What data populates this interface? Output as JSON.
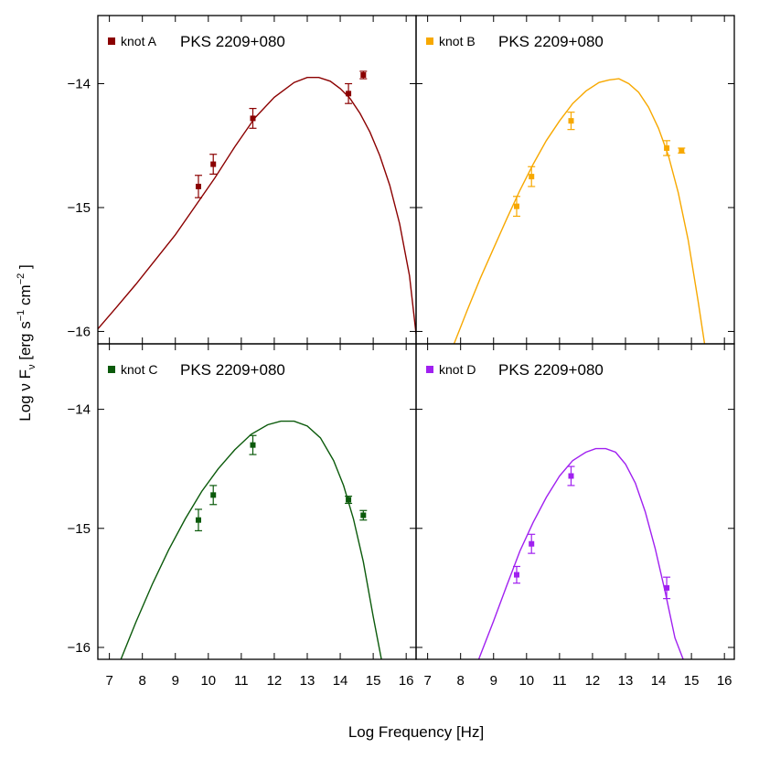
{
  "figure": {
    "ylabel_main": "Log ν F",
    "ylabel_sub": "ν",
    "ylabel_units": "[erg  s",
    "ylabel_exp1": "−1",
    "ylabel_cm": "cm",
    "ylabel_exp2": "−2",
    "ylabel_close": "]",
    "xlabel": "Log Frequency [Hz]"
  },
  "chart_data": [
    {
      "type": "scatter",
      "panel": "top-left",
      "legend_label": "knot A",
      "source_label": "PKS 2209+080",
      "color": "#8b0000",
      "xlim": [
        6.65,
        16.3
      ],
      "ylim": [
        -16.1,
        -13.45
      ],
      "x_ticks": [
        7,
        8,
        9,
        10,
        11,
        12,
        13,
        14,
        15,
        16
      ],
      "y_ticks": [
        -14,
        -15,
        -16
      ],
      "y_tick_labels": [
        "−14",
        "−15",
        "−16"
      ],
      "show_x_tick_labels": false,
      "show_y_tick_labels": true,
      "points": [
        {
          "x": 9.7,
          "y": -14.83,
          "err": 0.09
        },
        {
          "x": 10.15,
          "y": -14.65,
          "err": 0.08
        },
        {
          "x": 11.35,
          "y": -14.28,
          "err": 0.08
        },
        {
          "x": 14.25,
          "y": -14.08,
          "err": 0.08
        },
        {
          "x": 14.7,
          "y": -13.93,
          "err": 0.03
        }
      ],
      "model_curve": {
        "x": [
          6.65,
          7.2,
          7.8,
          8.4,
          9.0,
          9.6,
          10.2,
          10.8,
          11.4,
          12.0,
          12.6,
          13.0,
          13.35,
          13.7,
          14.0,
          14.3,
          14.6,
          14.9,
          15.2,
          15.5,
          15.8,
          16.1,
          16.3
        ],
        "y": [
          -15.98,
          -15.81,
          -15.62,
          -15.42,
          -15.22,
          -14.99,
          -14.76,
          -14.51,
          -14.28,
          -14.11,
          -13.99,
          -13.95,
          -13.95,
          -13.98,
          -14.04,
          -14.12,
          -14.24,
          -14.39,
          -14.58,
          -14.82,
          -15.13,
          -15.55,
          -16.02
        ]
      }
    },
    {
      "type": "scatter",
      "panel": "top-right",
      "legend_label": "knot B",
      "source_label": "PKS 2209+080",
      "color": "#f7a800",
      "xlim": [
        6.65,
        16.3
      ],
      "ylim": [
        -16.1,
        -13.45
      ],
      "x_ticks": [
        7,
        8,
        9,
        10,
        11,
        12,
        13,
        14,
        15,
        16
      ],
      "y_ticks": [
        -14,
        -15,
        -16
      ],
      "y_tick_labels": [
        "−14",
        "−15",
        "−16"
      ],
      "show_x_tick_labels": false,
      "show_y_tick_labels": false,
      "points": [
        {
          "x": 9.7,
          "y": -14.99,
          "err": 0.08
        },
        {
          "x": 10.15,
          "y": -14.75,
          "err": 0.08
        },
        {
          "x": 11.35,
          "y": -14.3,
          "err": 0.07
        },
        {
          "x": 14.25,
          "y": -14.52,
          "err": 0.06
        },
        {
          "x": 14.7,
          "y": -14.54,
          "err": 0.02
        }
      ],
      "model_curve": {
        "x": [
          7.8,
          8.2,
          8.6,
          9.0,
          9.4,
          9.8,
          10.2,
          10.6,
          11.0,
          11.4,
          11.8,
          12.2,
          12.5,
          12.8,
          13.1,
          13.4,
          13.7,
          14.0,
          14.3,
          14.6,
          14.9,
          15.2,
          15.4
        ],
        "y": [
          -16.1,
          -15.83,
          -15.57,
          -15.33,
          -15.09,
          -14.86,
          -14.65,
          -14.46,
          -14.3,
          -14.16,
          -14.06,
          -13.99,
          -13.97,
          -13.96,
          -14.0,
          -14.07,
          -14.19,
          -14.36,
          -14.58,
          -14.88,
          -15.26,
          -15.75,
          -16.1
        ]
      }
    },
    {
      "type": "scatter",
      "panel": "bottom-left",
      "legend_label": "knot C",
      "source_label": "PKS 2209+080",
      "color": "#0b5a0b",
      "xlim": [
        6.65,
        16.3
      ],
      "ylim": [
        -16.1,
        -13.45
      ],
      "x_ticks": [
        7,
        8,
        9,
        10,
        11,
        12,
        13,
        14,
        15,
        16
      ],
      "x_tick_labels": [
        "7",
        "8",
        "9",
        "10",
        "11",
        "12",
        "13",
        "14",
        "15",
        "16"
      ],
      "y_ticks": [
        -14,
        -15,
        -16
      ],
      "y_tick_labels": [
        "−14",
        "−15",
        "−16"
      ],
      "show_x_tick_labels": true,
      "show_y_tick_labels": true,
      "points": [
        {
          "x": 9.7,
          "y": -14.93,
          "err": 0.09
        },
        {
          "x": 10.15,
          "y": -14.72,
          "err": 0.08
        },
        {
          "x": 11.35,
          "y": -14.3,
          "err": 0.08
        },
        {
          "x": 14.25,
          "y": -14.76,
          "err": 0.03
        },
        {
          "x": 14.7,
          "y": -14.89,
          "err": 0.04
        }
      ],
      "model_curve": {
        "x": [
          7.35,
          7.8,
          8.3,
          8.8,
          9.3,
          9.8,
          10.3,
          10.8,
          11.3,
          11.8,
          12.2,
          12.6,
          13.0,
          13.4,
          13.8,
          14.1,
          14.4,
          14.7,
          15.0,
          15.25
        ],
        "y": [
          -16.1,
          -15.79,
          -15.47,
          -15.18,
          -14.92,
          -14.69,
          -14.5,
          -14.34,
          -14.21,
          -14.13,
          -14.1,
          -14.1,
          -14.14,
          -14.24,
          -14.43,
          -14.64,
          -14.92,
          -15.28,
          -15.74,
          -16.1
        ]
      }
    },
    {
      "type": "scatter",
      "panel": "bottom-right",
      "legend_label": "knot D",
      "source_label": "PKS 2209+080",
      "color": "#a020f0",
      "xlim": [
        6.65,
        16.3
      ],
      "ylim": [
        -16.1,
        -13.45
      ],
      "x_ticks": [
        7,
        8,
        9,
        10,
        11,
        12,
        13,
        14,
        15,
        16
      ],
      "x_tick_labels": [
        "7",
        "8",
        "9",
        "10",
        "11",
        "12",
        "13",
        "14",
        "15",
        "16"
      ],
      "y_ticks": [
        -14,
        -15,
        -16
      ],
      "y_tick_labels": [
        "−14",
        "−15",
        "−16"
      ],
      "show_x_tick_labels": true,
      "show_y_tick_labels": false,
      "points": [
        {
          "x": 9.7,
          "y": -15.39,
          "err": 0.07
        },
        {
          "x": 10.15,
          "y": -15.13,
          "err": 0.08
        },
        {
          "x": 11.35,
          "y": -14.56,
          "err": 0.08
        },
        {
          "x": 14.25,
          "y": -15.5,
          "err": 0.09
        }
      ],
      "model_curve": {
        "x": [
          8.55,
          9.0,
          9.4,
          9.8,
          10.2,
          10.6,
          11.0,
          11.4,
          11.8,
          12.1,
          12.4,
          12.7,
          13.0,
          13.3,
          13.6,
          13.9,
          14.2,
          14.5,
          14.75
        ],
        "y": [
          -16.1,
          -15.78,
          -15.48,
          -15.19,
          -14.95,
          -14.74,
          -14.56,
          -14.43,
          -14.36,
          -14.33,
          -14.33,
          -14.36,
          -14.46,
          -14.62,
          -14.86,
          -15.17,
          -15.53,
          -15.92,
          -16.1
        ]
      }
    }
  ]
}
